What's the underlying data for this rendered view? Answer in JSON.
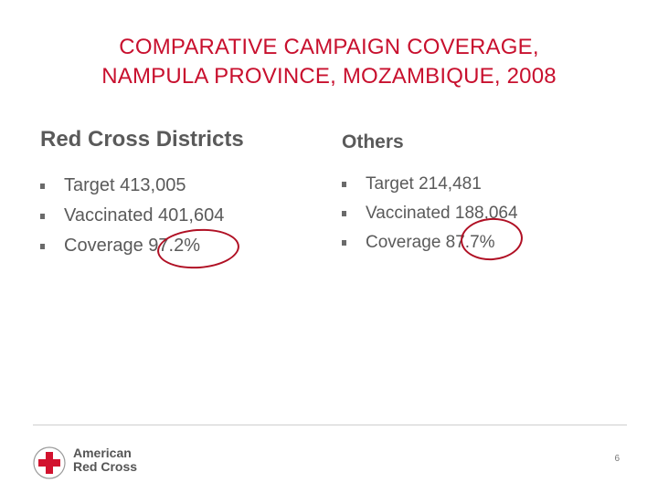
{
  "title": {
    "line1": "COMPARATIVE CAMPAIGN COVERAGE,",
    "line2": "NAMPULA PROVINCE, MOZAMBIQUE, 2008"
  },
  "left": {
    "heading": "Red Cross Districts",
    "items": [
      "Target 413,005",
      "Vaccinated 401,604",
      "Coverage 97.2%"
    ]
  },
  "right": {
    "heading": "Others",
    "items": [
      "Target 214,481",
      "Vaccinated 188,064",
      "Coverage 87.7%"
    ]
  },
  "logo": {
    "line1": "American",
    "line2": "Red Cross"
  },
  "page_number": "6",
  "colors": {
    "title": "#c8102e",
    "circle": "#b01024",
    "body_text": "#5a5a5a"
  }
}
